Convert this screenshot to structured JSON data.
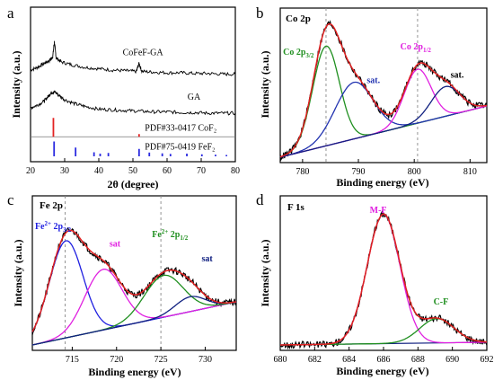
{
  "chart_data": [
    {
      "panel": "a",
      "type": "line",
      "xlabel": "2θ (degree)",
      "ylabel": "Intensity (a.u.)",
      "xlim": [
        20,
        80
      ],
      "xticks": [
        20,
        30,
        40,
        50,
        60,
        70,
        80
      ],
      "series": [
        {
          "name": "CoFeF-GA",
          "color": "#000000",
          "x": [
            20,
            22,
            24,
            25.5,
            26.5,
            27,
            27.5,
            29,
            32,
            36,
            40,
            44,
            48,
            51,
            51.8,
            52.6,
            56,
            60,
            64,
            68,
            72,
            76,
            80
          ],
          "y": [
            0.64,
            0.66,
            0.69,
            0.71,
            0.74,
            0.85,
            0.73,
            0.7,
            0.68,
            0.66,
            0.65,
            0.64,
            0.635,
            0.63,
            0.69,
            0.63,
            0.625,
            0.62,
            0.62,
            0.615,
            0.615,
            0.61,
            0.61
          ]
        },
        {
          "name": "GA",
          "color": "#000000",
          "x": [
            20,
            22,
            24,
            25,
            26,
            27,
            28,
            30,
            33,
            36,
            40,
            44,
            48,
            52,
            56,
            60,
            64,
            68,
            72,
            76,
            80
          ],
          "y": [
            0.36,
            0.38,
            0.41,
            0.44,
            0.47,
            0.48,
            0.46,
            0.42,
            0.39,
            0.37,
            0.35,
            0.345,
            0.34,
            0.335,
            0.33,
            0.33,
            0.325,
            0.325,
            0.32,
            0.32,
            0.32
          ]
        }
      ],
      "references": [
        {
          "name": "PDF#33-0417 CoF₂",
          "color": "#e32222",
          "baseline": 0.145,
          "x": [
            26.7,
            51.8
          ],
          "h": [
            0.14,
            0.02
          ]
        },
        {
          "name": "PDF#75-0419 FeF₂",
          "color": "#2a2ae0",
          "baseline": 0.0,
          "x": [
            26.9,
            33.2,
            38.6,
            40.4,
            42.8,
            51.8,
            54.8,
            58.6,
            61.0,
            65.8,
            70.2,
            74.2,
            77.4
          ],
          "h": [
            0.11,
            0.065,
            0.03,
            0.02,
            0.025,
            0.055,
            0.028,
            0.022,
            0.018,
            0.02,
            0.015,
            0.012,
            0.01
          ]
        }
      ],
      "labels": [
        {
          "text": "CoFeF-GA",
          "x": 47,
          "y": 0.75
        },
        {
          "text": "GA",
          "x": 66,
          "y": 0.42
        },
        {
          "text": "PDF#33-0417 CoF₂",
          "x": 53.5,
          "y": 0.19
        },
        {
          "text": "PDF#75-0419 FeF₂",
          "x": 53.5,
          "y": 0.05
        }
      ]
    },
    {
      "panel": "b",
      "type": "line",
      "title": "Co 2p",
      "xlabel": "Binding energy (eV)",
      "ylabel": "Intensity (a.u.)",
      "xlim": [
        776,
        813
      ],
      "xticks": [
        780,
        790,
        800,
        810
      ],
      "dashed_x": [
        784.2,
        800.6
      ],
      "baseline": [
        [
          776,
          0.0
        ],
        [
          813,
          0.38
        ]
      ],
      "peaks": [
        {
          "name": "Co 2p3/2",
          "color": "#1f8f1f",
          "center": 784.2,
          "height": 0.74,
          "width": 2.4
        },
        {
          "name": "sat.",
          "color": "#2233b0",
          "center": 789.2,
          "height": 0.42,
          "width": 3.4
        },
        {
          "name": "Co 2p1/2",
          "color": "#e020e0",
          "center": 800.6,
          "height": 0.4,
          "width": 2.4
        },
        {
          "name": "sat.",
          "color": "#102080",
          "center": 805.6,
          "height": 0.22,
          "width": 2.6
        }
      ],
      "labels": [
        {
          "text": "Co 2p",
          "sub": "3/2",
          "x": 776.5,
          "y": 0.76,
          "color": "#1f8f1f"
        },
        {
          "text": "sat.",
          "sub": "",
          "x": 791.5,
          "y": 0.55,
          "color": "#2233b0"
        },
        {
          "text": "Co 2p",
          "sub": "1/2",
          "x": 797.5,
          "y": 0.8,
          "color": "#e020e0"
        },
        {
          "text": "sat.",
          "sub": "",
          "x": 806.5,
          "y": 0.59,
          "color": "#000000"
        }
      ]
    },
    {
      "panel": "c",
      "type": "line",
      "title": "Fe 2p",
      "xlabel": "Binding energy (eV)",
      "ylabel": "Intensity (a.u.)",
      "xlim": [
        710.5,
        733.5
      ],
      "xticks": [
        715,
        720,
        725,
        730
      ],
      "dashed_x": [
        714.2,
        725.0
      ],
      "baseline": [
        [
          710.5,
          0.0
        ],
        [
          733.5,
          0.32
        ]
      ],
      "peaks": [
        {
          "name": "Fe2+ 2p3/2",
          "color": "#2020e0",
          "center": 714.3,
          "height": 0.72,
          "width": 1.9
        },
        {
          "name": "sat",
          "color": "#e020e0",
          "center": 718.5,
          "height": 0.45,
          "width": 2.1
        },
        {
          "name": "Fe2+ 2p1/2",
          "color": "#1f8f1f",
          "center": 725.3,
          "height": 0.31,
          "width": 2.2
        },
        {
          "name": "sat",
          "color": "#102080",
          "center": 728.3,
          "height": 0.11,
          "width": 1.7
        }
      ],
      "labels": [
        {
          "text": "Fe",
          "sup": "2+",
          "sub": "3/2",
          "mid": " 2p",
          "x": 710.8,
          "y": 0.86,
          "color": "#2020e0"
        },
        {
          "text": "sat",
          "x": 719.2,
          "y": 0.73,
          "color": "#e020e0"
        },
        {
          "text": "Fe",
          "sup": "2+",
          "sub": "1/2",
          "mid": " 2p",
          "x": 724.0,
          "y": 0.8,
          "color": "#1f8f1f"
        },
        {
          "text": "sat",
          "x": 729.6,
          "y": 0.62,
          "color": "#102080"
        }
      ]
    },
    {
      "panel": "d",
      "type": "line",
      "title": "F 1s",
      "xlabel": "Binding energy (eV)",
      "ylabel": "Intensity (a.u.)",
      "xlim": [
        680,
        692
      ],
      "xticks": [
        680,
        682,
        684,
        686,
        688,
        690,
        692
      ],
      "baseline": [
        [
          680,
          0.0
        ],
        [
          692,
          0.02
        ]
      ],
      "peaks": [
        {
          "name": "M-F",
          "color": "#e020e0",
          "center": 686.0,
          "height": 0.96,
          "width": 0.95
        },
        {
          "name": "C-F",
          "color": "#1f8f1f",
          "center": 689.1,
          "height": 0.18,
          "width": 1.0
        }
      ],
      "labels": [
        {
          "text": "M-F",
          "x": 685.2,
          "y": 0.98,
          "color": "#e020e0"
        },
        {
          "text": "C-F",
          "x": 688.9,
          "y": 0.3,
          "color": "#1f8f1f"
        }
      ]
    }
  ]
}
